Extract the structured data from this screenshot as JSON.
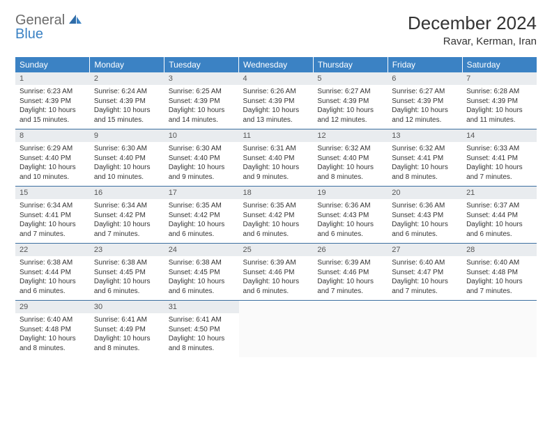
{
  "logo": {
    "general": "General",
    "blue": "Blue"
  },
  "title": "December 2024",
  "location": "Ravar, Kerman, Iran",
  "colors": {
    "header_bg": "#3b82c4",
    "header_text": "#ffffff",
    "daynum_bg": "#e9ecef",
    "border": "#3b6fa0",
    "logo_gray": "#6b6b6b",
    "logo_blue": "#3b82c4"
  },
  "weekdays": [
    "Sunday",
    "Monday",
    "Tuesday",
    "Wednesday",
    "Thursday",
    "Friday",
    "Saturday"
  ],
  "days": [
    {
      "n": 1,
      "sunrise": "6:23 AM",
      "sunset": "4:39 PM",
      "daylight": "10 hours and 15 minutes."
    },
    {
      "n": 2,
      "sunrise": "6:24 AM",
      "sunset": "4:39 PM",
      "daylight": "10 hours and 15 minutes."
    },
    {
      "n": 3,
      "sunrise": "6:25 AM",
      "sunset": "4:39 PM",
      "daylight": "10 hours and 14 minutes."
    },
    {
      "n": 4,
      "sunrise": "6:26 AM",
      "sunset": "4:39 PM",
      "daylight": "10 hours and 13 minutes."
    },
    {
      "n": 5,
      "sunrise": "6:27 AM",
      "sunset": "4:39 PM",
      "daylight": "10 hours and 12 minutes."
    },
    {
      "n": 6,
      "sunrise": "6:27 AM",
      "sunset": "4:39 PM",
      "daylight": "10 hours and 12 minutes."
    },
    {
      "n": 7,
      "sunrise": "6:28 AM",
      "sunset": "4:39 PM",
      "daylight": "10 hours and 11 minutes."
    },
    {
      "n": 8,
      "sunrise": "6:29 AM",
      "sunset": "4:40 PM",
      "daylight": "10 hours and 10 minutes."
    },
    {
      "n": 9,
      "sunrise": "6:30 AM",
      "sunset": "4:40 PM",
      "daylight": "10 hours and 10 minutes."
    },
    {
      "n": 10,
      "sunrise": "6:30 AM",
      "sunset": "4:40 PM",
      "daylight": "10 hours and 9 minutes."
    },
    {
      "n": 11,
      "sunrise": "6:31 AM",
      "sunset": "4:40 PM",
      "daylight": "10 hours and 9 minutes."
    },
    {
      "n": 12,
      "sunrise": "6:32 AM",
      "sunset": "4:40 PM",
      "daylight": "10 hours and 8 minutes."
    },
    {
      "n": 13,
      "sunrise": "6:32 AM",
      "sunset": "4:41 PM",
      "daylight": "10 hours and 8 minutes."
    },
    {
      "n": 14,
      "sunrise": "6:33 AM",
      "sunset": "4:41 PM",
      "daylight": "10 hours and 7 minutes."
    },
    {
      "n": 15,
      "sunrise": "6:34 AM",
      "sunset": "4:41 PM",
      "daylight": "10 hours and 7 minutes."
    },
    {
      "n": 16,
      "sunrise": "6:34 AM",
      "sunset": "4:42 PM",
      "daylight": "10 hours and 7 minutes."
    },
    {
      "n": 17,
      "sunrise": "6:35 AM",
      "sunset": "4:42 PM",
      "daylight": "10 hours and 6 minutes."
    },
    {
      "n": 18,
      "sunrise": "6:35 AM",
      "sunset": "4:42 PM",
      "daylight": "10 hours and 6 minutes."
    },
    {
      "n": 19,
      "sunrise": "6:36 AM",
      "sunset": "4:43 PM",
      "daylight": "10 hours and 6 minutes."
    },
    {
      "n": 20,
      "sunrise": "6:36 AM",
      "sunset": "4:43 PM",
      "daylight": "10 hours and 6 minutes."
    },
    {
      "n": 21,
      "sunrise": "6:37 AM",
      "sunset": "4:44 PM",
      "daylight": "10 hours and 6 minutes."
    },
    {
      "n": 22,
      "sunrise": "6:38 AM",
      "sunset": "4:44 PM",
      "daylight": "10 hours and 6 minutes."
    },
    {
      "n": 23,
      "sunrise": "6:38 AM",
      "sunset": "4:45 PM",
      "daylight": "10 hours and 6 minutes."
    },
    {
      "n": 24,
      "sunrise": "6:38 AM",
      "sunset": "4:45 PM",
      "daylight": "10 hours and 6 minutes."
    },
    {
      "n": 25,
      "sunrise": "6:39 AM",
      "sunset": "4:46 PM",
      "daylight": "10 hours and 6 minutes."
    },
    {
      "n": 26,
      "sunrise": "6:39 AM",
      "sunset": "4:46 PM",
      "daylight": "10 hours and 7 minutes."
    },
    {
      "n": 27,
      "sunrise": "6:40 AM",
      "sunset": "4:47 PM",
      "daylight": "10 hours and 7 minutes."
    },
    {
      "n": 28,
      "sunrise": "6:40 AM",
      "sunset": "4:48 PM",
      "daylight": "10 hours and 7 minutes."
    },
    {
      "n": 29,
      "sunrise": "6:40 AM",
      "sunset": "4:48 PM",
      "daylight": "10 hours and 8 minutes."
    },
    {
      "n": 30,
      "sunrise": "6:41 AM",
      "sunset": "4:49 PM",
      "daylight": "10 hours and 8 minutes."
    },
    {
      "n": 31,
      "sunrise": "6:41 AM",
      "sunset": "4:50 PM",
      "daylight": "10 hours and 8 minutes."
    }
  ],
  "labels": {
    "sunrise": "Sunrise:",
    "sunset": "Sunset:",
    "daylight": "Daylight:"
  }
}
